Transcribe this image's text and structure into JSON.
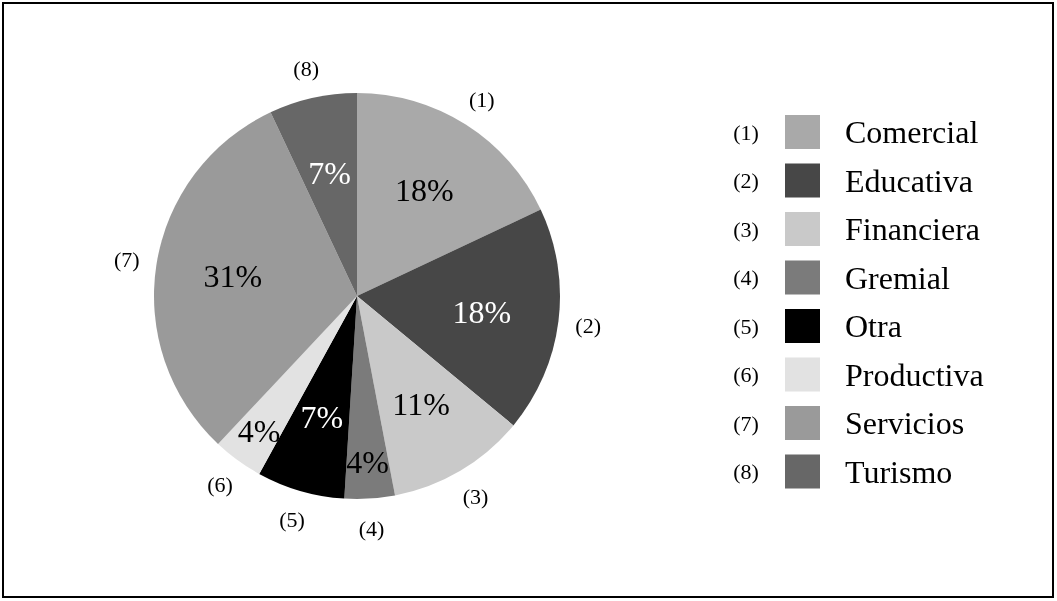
{
  "chart_data": {
    "type": "pie",
    "categories": [
      "Comercial",
      "Educativa",
      "Financiera",
      "Gremial",
      "Otra",
      "Productiva",
      "Servicios",
      "Turismo"
    ],
    "values": [
      18,
      18,
      11,
      4,
      7,
      4,
      31,
      7
    ],
    "colors": [
      "#a9a9a9",
      "#474747",
      "#c9c9c9",
      "#7b7b7b",
      "#000000",
      "#e2e2e2",
      "#9a9a9a",
      "#676767"
    ],
    "value_labels": [
      "18%",
      "18%",
      "11%",
      "4%",
      "7%",
      "4%",
      "31%",
      "7%"
    ],
    "annotations": [
      "(1)",
      "(2)",
      "(3)",
      "(4)",
      "(5)",
      "(6)",
      "(7)",
      "(8)"
    ],
    "legend": "right"
  }
}
